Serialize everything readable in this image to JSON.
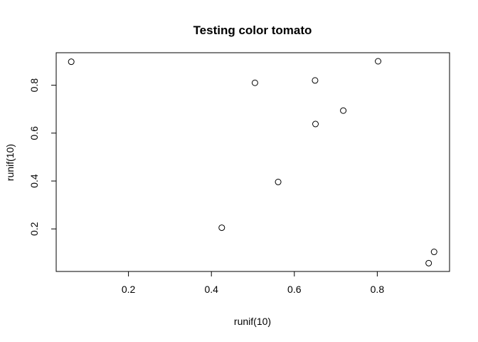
{
  "chart_data": {
    "type": "scatter",
    "title": "Testing color tomato",
    "xlabel": "runif(10)",
    "ylabel": "runif(10)",
    "xlim": [
      0.06,
      0.94
    ],
    "ylim": [
      0.055,
      0.9
    ],
    "xticks": [
      0.2,
      0.4,
      0.6,
      0.8
    ],
    "yticks": [
      0.2,
      0.4,
      0.6,
      0.8
    ],
    "grid": false,
    "series": [
      {
        "points": [
          {
            "x": 0.062,
            "y": 0.898
          },
          {
            "x": 0.425,
            "y": 0.205
          },
          {
            "x": 0.505,
            "y": 0.81
          },
          {
            "x": 0.561,
            "y": 0.396
          },
          {
            "x": 0.65,
            "y": 0.82
          },
          {
            "x": 0.651,
            "y": 0.638
          },
          {
            "x": 0.718,
            "y": 0.694
          },
          {
            "x": 0.802,
            "y": 0.9
          },
          {
            "x": 0.924,
            "y": 0.057
          },
          {
            "x": 0.937,
            "y": 0.104
          }
        ]
      }
    ]
  }
}
